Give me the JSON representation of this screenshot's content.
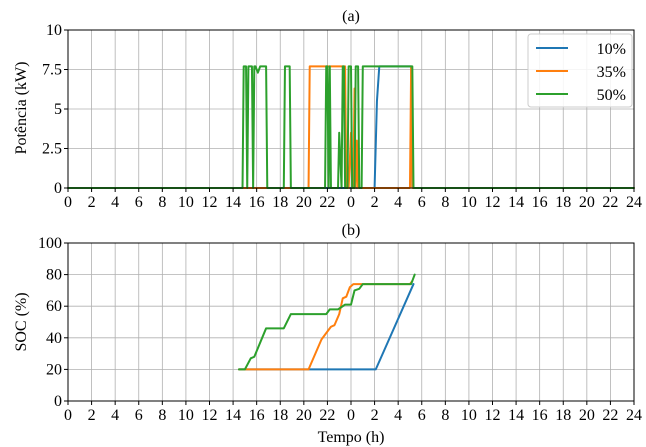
{
  "chart_data": [
    {
      "type": "line",
      "panel_label": "(a)",
      "title": "(a)",
      "xlabel": "",
      "ylabel": "Potência (kW)",
      "xlim": [
        0,
        48
      ],
      "ylim": [
        0,
        10
      ],
      "x_tick_labels": [
        "0",
        "2",
        "4",
        "6",
        "8",
        "10",
        "12",
        "14",
        "16",
        "18",
        "20",
        "22",
        "0",
        "2",
        "4",
        "6",
        "8",
        "10",
        "12",
        "14",
        "16",
        "18",
        "20",
        "22",
        "24"
      ],
      "y_ticks": [
        0,
        2.5,
        5,
        7.5,
        10
      ],
      "y_tick_labels": [
        "0",
        "2.5",
        "5",
        "7.5",
        "10"
      ],
      "grid": true,
      "legend_position": "top-right",
      "series": [
        {
          "name": "10%",
          "color": "#1f77b4",
          "x": [
            0,
            26.0,
            26.2,
            26.4,
            29.0,
            29.1,
            29.2,
            48
          ],
          "y": [
            0,
            0,
            5.5,
            7.7,
            7.7,
            7.7,
            0,
            0
          ]
        },
        {
          "name": "35%",
          "color": "#ff7f0e",
          "x": [
            0,
            20.4,
            20.5,
            23.5,
            23.6,
            23.8,
            24.0,
            24.1,
            24.2,
            24.3,
            24.4,
            24.5,
            24.6,
            24.8,
            29.0,
            29.1,
            29.2,
            48
          ],
          "y": [
            0,
            0,
            7.7,
            7.7,
            0,
            0,
            3.5,
            0,
            0,
            6.3,
            0,
            3.0,
            0,
            0,
            0,
            7.7,
            0,
            0
          ]
        },
        {
          "name": "50%",
          "color": "#2ca02c",
          "x": [
            0,
            14.8,
            14.9,
            15.1,
            15.2,
            15.3,
            15.6,
            15.7,
            15.8,
            15.9,
            16.1,
            16.3,
            16.8,
            16.9,
            18.3,
            18.4,
            18.8,
            18.9,
            21.8,
            21.9,
            22.0,
            22.1,
            22.2,
            22.3,
            22.9,
            23.0,
            23.2,
            23.3,
            23.4,
            23.5,
            23.7,
            23.8,
            24.0,
            24.1,
            24.3,
            24.4,
            24.6,
            24.7,
            24.9,
            25.0,
            29.1,
            29.2,
            29.3,
            48
          ],
          "y": [
            0,
            0,
            7.7,
            7.7,
            0,
            7.7,
            7.7,
            0,
            7.7,
            7.7,
            7.3,
            7.7,
            7.7,
            0,
            0,
            7.7,
            7.7,
            0,
            0,
            7.7,
            7.7,
            0,
            7.7,
            0,
            0,
            3.5,
            0,
            7.7,
            7.7,
            0,
            0,
            7.7,
            7.7,
            0,
            0,
            7.7,
            7.7,
            0,
            0,
            7.7,
            7.7,
            7.7,
            0,
            0
          ]
        }
      ]
    },
    {
      "type": "line",
      "panel_label": "(b)",
      "title": "(b)",
      "xlabel": "Tempo (h)",
      "ylabel": "SOC (%)",
      "xlim": [
        0,
        48
      ],
      "ylim": [
        0,
        100
      ],
      "x_tick_labels": [
        "0",
        "2",
        "4",
        "6",
        "8",
        "10",
        "12",
        "14",
        "16",
        "18",
        "20",
        "22",
        "0",
        "2",
        "4",
        "6",
        "8",
        "10",
        "12",
        "14",
        "16",
        "18",
        "20",
        "22",
        "24"
      ],
      "y_ticks": [
        0,
        20,
        40,
        60,
        80,
        100
      ],
      "y_tick_labels": [
        "0",
        "20",
        "40",
        "60",
        "80",
        "100"
      ],
      "grid": true,
      "series": [
        {
          "name": "10%",
          "color": "#1f77b4",
          "x": [
            14.5,
            20.5,
            26.1,
            29.3
          ],
          "y": [
            20,
            20,
            20,
            74
          ]
        },
        {
          "name": "35%",
          "color": "#ff7f0e",
          "x": [
            14.5,
            20.4,
            21.5,
            22.3,
            22.6,
            23.0,
            23.3,
            23.6,
            23.9,
            24.2,
            29.0,
            29.2
          ],
          "y": [
            20,
            20,
            39,
            47,
            48,
            55,
            65,
            66,
            72,
            74,
            74,
            76
          ]
        },
        {
          "name": "50%",
          "color": "#2ca02c",
          "x": [
            14.5,
            15.0,
            15.5,
            15.8,
            16.8,
            18.3,
            18.9,
            21.9,
            22.2,
            22.9,
            23.5,
            24.0,
            24.3,
            24.7,
            25.0,
            29.1,
            29.4
          ],
          "y": [
            20,
            20,
            27,
            28,
            46,
            46,
            55,
            55,
            58,
            58,
            61,
            61,
            70,
            71,
            74,
            74,
            80
          ]
        }
      ]
    }
  ]
}
